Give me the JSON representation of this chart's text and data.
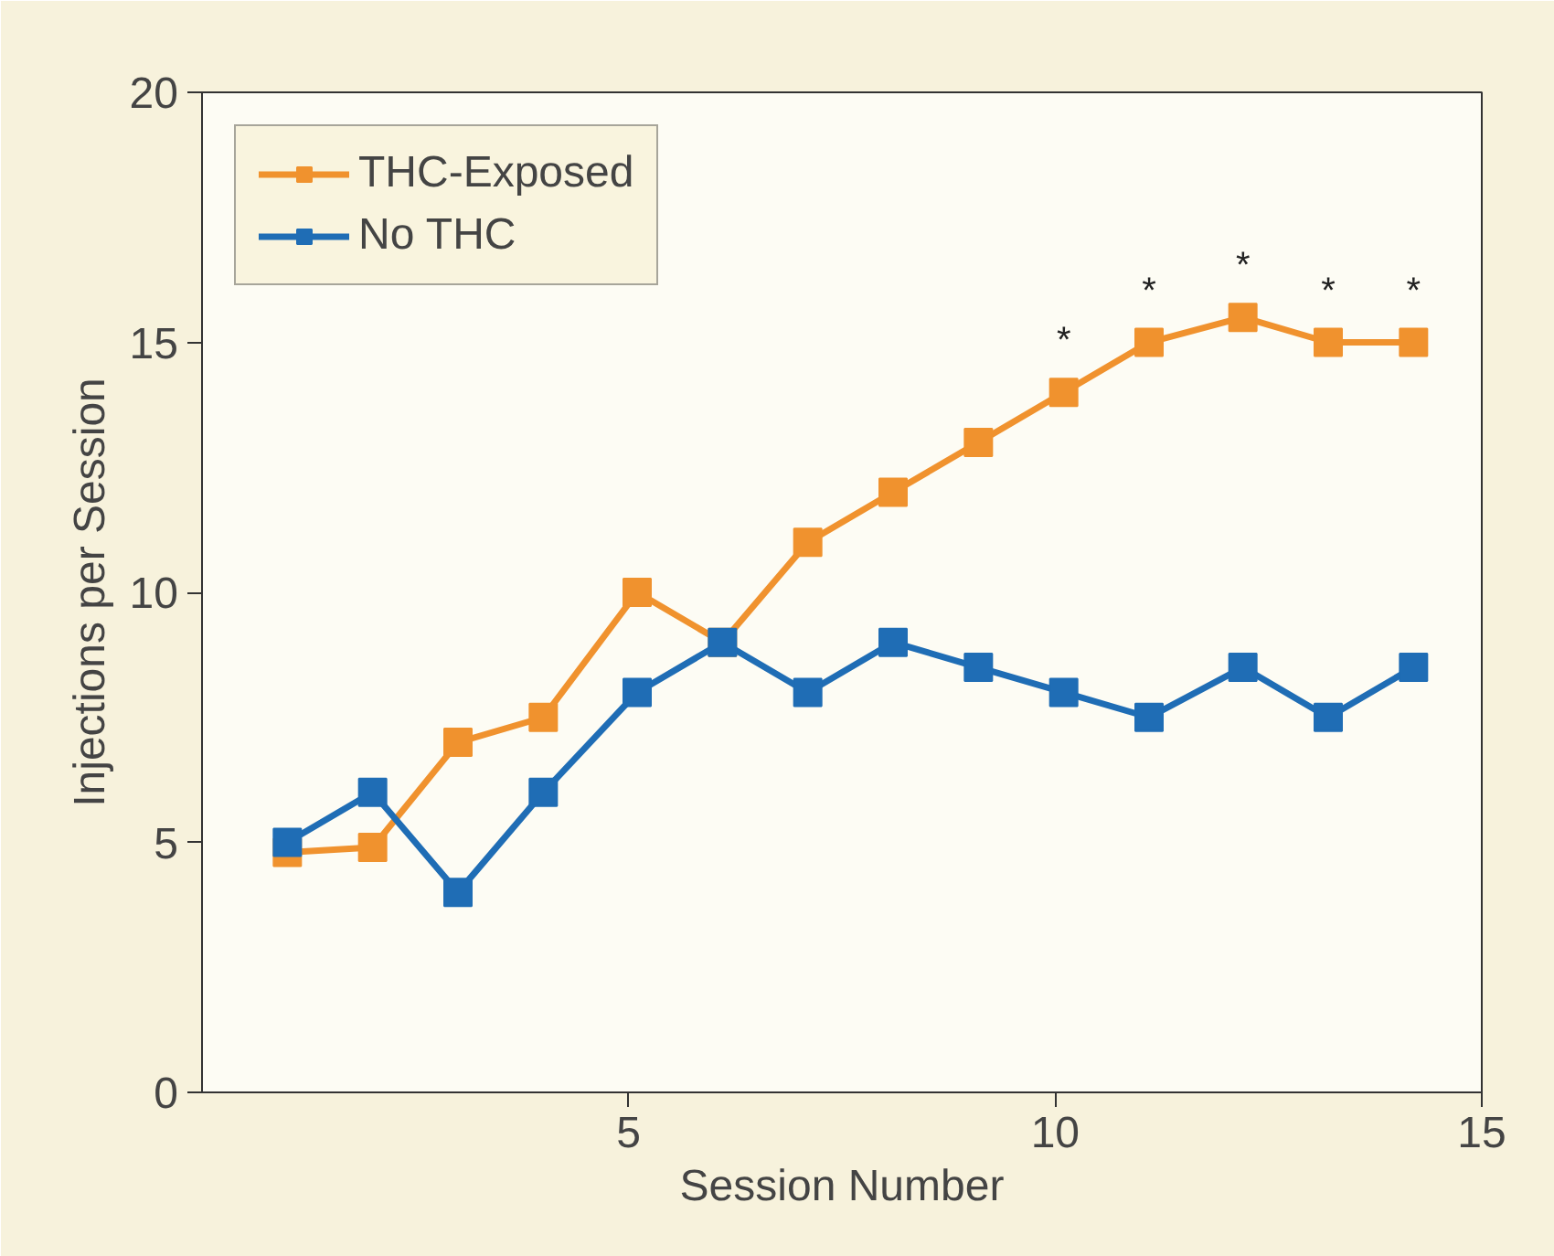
{
  "chart_data": {
    "type": "line",
    "xlabel": "Session Number",
    "ylabel": "Injections per Session",
    "x": [
      1.0,
      2.0,
      3.0,
      4.0,
      5.1,
      6.1,
      7.1,
      8.1,
      9.1,
      10.1,
      11.1,
      12.2,
      13.2,
      14.2
    ],
    "series": [
      {
        "name": "THC-Exposed",
        "color": "#f0922e",
        "values": [
          4.8,
          4.9,
          7.0,
          7.5,
          10,
          9.0,
          11,
          12,
          13,
          14,
          15,
          15.5,
          15,
          15
        ]
      },
      {
        "name": "No THC",
        "color": "#1f6db5",
        "values": [
          5.0,
          6.0,
          4.0,
          6.0,
          8.0,
          9.0,
          8.0,
          9.0,
          8.5,
          8.0,
          7.5,
          8.5,
          7.5,
          8.5
        ]
      }
    ],
    "annotations": [
      {
        "text": "*",
        "x": 10.1,
        "y": 14
      },
      {
        "text": "*",
        "x": 11.1,
        "y": 15
      },
      {
        "text": "*",
        "x": 12.2,
        "y": 15.5
      },
      {
        "text": "*",
        "x": 13.2,
        "y": 15
      },
      {
        "text": "*",
        "x": 14.2,
        "y": 15
      }
    ],
    "xlim": [
      0,
      15
    ],
    "xticks": [
      5,
      10,
      15
    ],
    "ylim": [
      0,
      20
    ],
    "yticks": [
      0,
      5,
      10,
      15,
      20
    ],
    "grid": false,
    "legend": "top left",
    "marker": "square",
    "line_style": "solid"
  }
}
